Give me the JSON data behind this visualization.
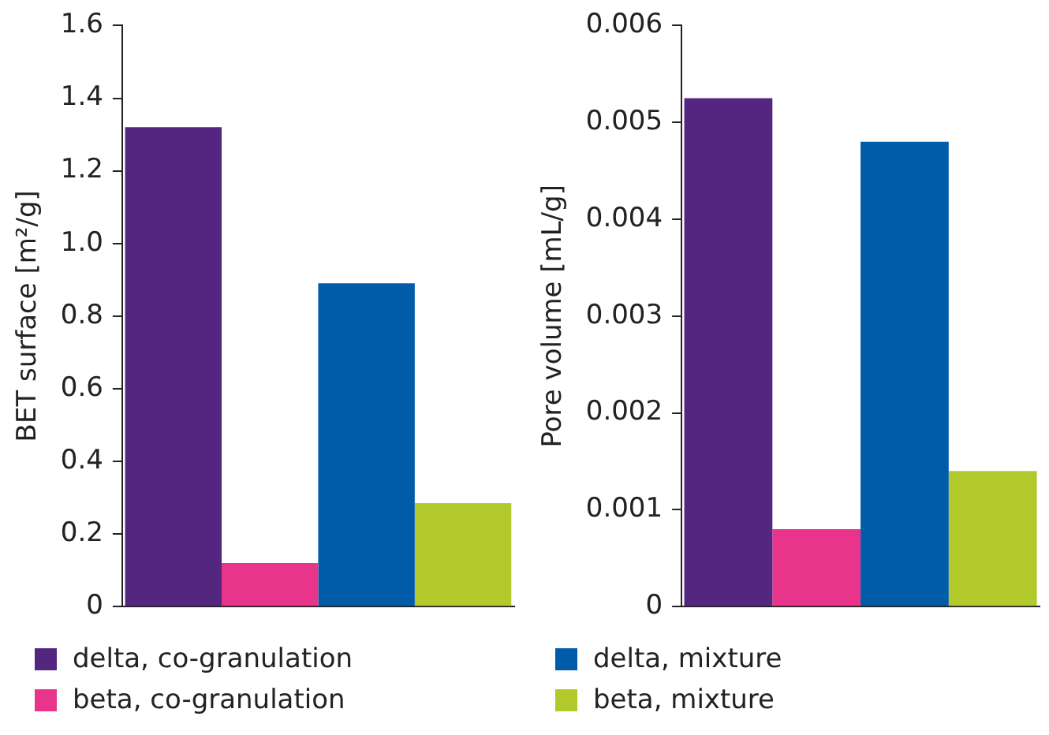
{
  "chart_data": [
    {
      "type": "bar",
      "ylabel": "BET surface [m²/g]",
      "categories": [
        null
      ],
      "ylim": [
        0,
        1.6
      ],
      "yticks": [
        0,
        0.2,
        0.4,
        0.6,
        0.8,
        {
          "value": 1,
          "label": "1.0"
        },
        1.2,
        1.4,
        1.6
      ],
      "grid": false,
      "legend": "bottom",
      "series": [
        {
          "name": "delta, co-granulation",
          "color": "#55267f",
          "values": [
            1.32
          ]
        },
        {
          "name": "beta, co-granulation",
          "color": "#e8348a",
          "values": [
            0.12
          ]
        },
        {
          "name": "delta, mixture",
          "color": "#005ca9",
          "values": [
            0.89
          ]
        },
        {
          "name": "beta, mixture",
          "color": "#b1c92a",
          "values": [
            0.285
          ]
        }
      ]
    },
    {
      "type": "bar",
      "ylabel": "Pore volume [mL/g]",
      "categories": [
        null
      ],
      "ylim": [
        0,
        0.006
      ],
      "yticks": [
        0,
        0.001,
        0.002,
        0.003,
        0.004,
        0.005,
        0.006
      ],
      "grid": false,
      "series": [
        {
          "color": "#55267f",
          "values": [
            0.00525
          ]
        },
        {
          "color": "#e8348a",
          "values": [
            0.0008
          ]
        },
        {
          "color": "#005ca9",
          "values": [
            0.0048
          ]
        },
        {
          "color": "#b1c92a",
          "values": [
            0.0014
          ]
        }
      ]
    }
  ]
}
